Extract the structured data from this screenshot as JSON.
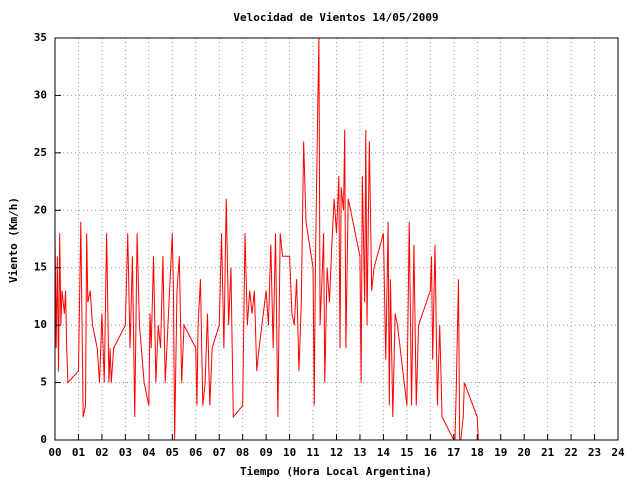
{
  "chart_data": {
    "type": "line",
    "title": "Velocidad de Vientos 14/05/2009",
    "x_label": "Tiempo (Hora Local Argentina)",
    "y_label": "Viento (Km/h)",
    "xlim": [
      0,
      24
    ],
    "ylim": [
      0,
      35
    ],
    "xticks": [
      {
        "value": 0,
        "label": "00"
      },
      {
        "value": 1,
        "label": "01"
      },
      {
        "value": 2,
        "label": "02"
      },
      {
        "value": 3,
        "label": "03"
      },
      {
        "value": 4,
        "label": "04"
      },
      {
        "value": 5,
        "label": "05"
      },
      {
        "value": 6,
        "label": "06"
      },
      {
        "value": 7,
        "label": "07"
      },
      {
        "value": 8,
        "label": "08"
      },
      {
        "value": 9,
        "label": "09"
      },
      10,
      11,
      12,
      13,
      14,
      15,
      16,
      17,
      18,
      19,
      20,
      21,
      22,
      23,
      24
    ],
    "yticks": [
      0,
      5,
      10,
      15,
      20,
      25,
      30,
      35
    ],
    "grid": true,
    "series": [
      {
        "color": "#ff0000",
        "x": [
          0.0,
          0.05,
          0.1,
          0.15,
          0.2,
          0.25,
          0.3,
          0.4,
          0.45,
          0.5,
          0.55,
          1.0,
          1.1,
          1.2,
          1.3,
          1.35,
          1.4,
          1.5,
          1.6,
          1.8,
          1.9,
          2.0,
          2.1,
          2.2,
          2.3,
          2.35,
          2.4,
          2.5,
          3.0,
          3.1,
          3.2,
          3.3,
          3.4,
          3.5,
          3.6,
          3.8,
          4.0,
          4.05,
          4.1,
          4.2,
          4.3,
          4.4,
          4.5,
          4.6,
          4.7,
          5.0,
          5.05,
          5.1,
          5.2,
          5.3,
          5.4,
          5.5,
          6.0,
          6.05,
          6.1,
          6.2,
          6.3,
          6.4,
          6.5,
          6.6,
          6.7,
          7.0,
          7.1,
          7.2,
          7.3,
          7.4,
          7.5,
          7.6,
          8.0,
          8.1,
          8.2,
          8.3,
          8.4,
          8.5,
          8.6,
          8.7,
          9.0,
          9.1,
          9.2,
          9.3,
          9.4,
          9.5,
          9.6,
          9.7,
          10.0,
          10.1,
          10.2,
          10.3,
          10.4,
          10.5,
          10.6,
          10.7,
          11.0,
          11.05,
          11.1,
          11.2,
          11.25,
          11.3,
          11.4,
          11.45,
          11.5,
          11.6,
          11.7,
          11.8,
          11.9,
          12.0,
          12.1,
          12.15,
          12.2,
          12.3,
          12.35,
          12.4,
          12.5,
          13.0,
          13.05,
          13.1,
          13.2,
          13.25,
          13.3,
          13.4,
          13.5,
          13.6,
          14.0,
          14.1,
          14.2,
          14.25,
          14.3,
          14.4,
          14.5,
          14.6,
          15.0,
          15.1,
          15.2,
          15.3,
          15.4,
          15.5,
          16.0,
          16.05,
          16.1,
          16.2,
          16.3,
          16.4,
          16.5,
          17.0,
          17.05,
          17.1,
          17.2,
          17.25,
          17.3,
          17.4,
          17.45,
          18.0,
          18.05
        ],
        "values": [
          18,
          8,
          16,
          6,
          18,
          10,
          13,
          11,
          13,
          8,
          5,
          6,
          19,
          2,
          3,
          18,
          12,
          13,
          10,
          8,
          5,
          11,
          5,
          18,
          5,
          8,
          5,
          8,
          10,
          18,
          8,
          16,
          2,
          18,
          10,
          5,
          3,
          11,
          8,
          16,
          5,
          10,
          8,
          16,
          5,
          18,
          13,
          0,
          13,
          16,
          5,
          10,
          8,
          3,
          10,
          14,
          3,
          5,
          11,
          3,
          8,
          10,
          18,
          8,
          21,
          10,
          15,
          2,
          3,
          18,
          10,
          13,
          11,
          13,
          6,
          8,
          13,
          10,
          17,
          8,
          18,
          2,
          18,
          16,
          16,
          11,
          10,
          14,
          6,
          12,
          26,
          19,
          15,
          3,
          15,
          29,
          35,
          10,
          15,
          18,
          5,
          15,
          12,
          17,
          21,
          18,
          23,
          8,
          22,
          20,
          27,
          8,
          21,
          16,
          5,
          23,
          12,
          27,
          10,
          26,
          13,
          15,
          18,
          7,
          19,
          3,
          14,
          2,
          11,
          10,
          3,
          19,
          3,
          17,
          3,
          10,
          13,
          16,
          7,
          17,
          3,
          10,
          2,
          0,
          0,
          4,
          14,
          0,
          0,
          2,
          5,
          2,
          0
        ]
      }
    ]
  }
}
